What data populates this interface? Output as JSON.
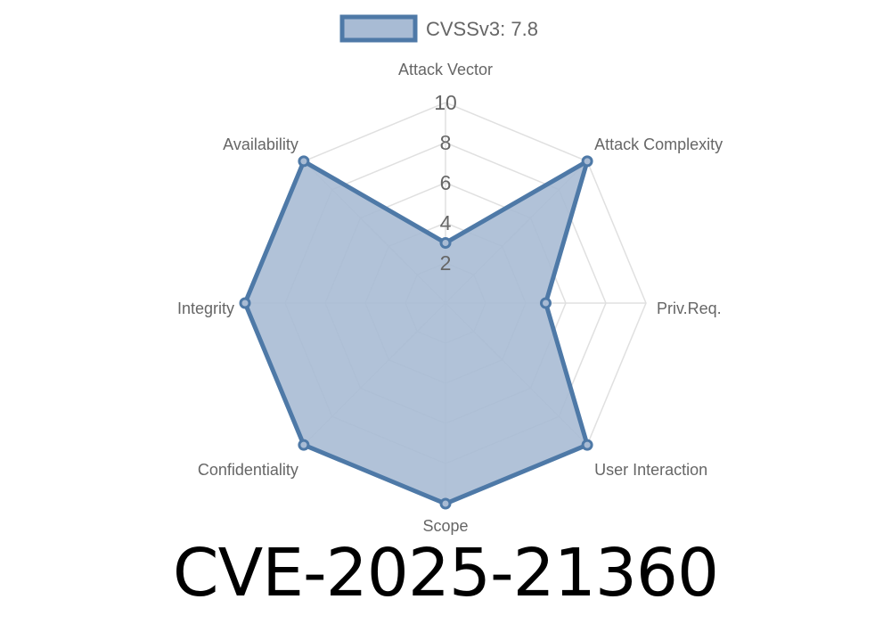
{
  "chart_data": {
    "type": "radar",
    "categories": [
      "Attack Vector",
      "Attack Complexity",
      "Priv.Req.",
      "User Interaction",
      "Scope",
      "Confidentiality",
      "Integrity",
      "Availability"
    ],
    "series": [
      {
        "name": "CVSSv3: 7.8",
        "values": [
          3,
          10,
          5,
          10,
          10,
          10,
          10,
          10
        ]
      }
    ],
    "rlim": [
      0,
      10
    ],
    "ticks": [
      "2",
      "4",
      "6",
      "8",
      "10"
    ],
    "grid": true,
    "legend": "top",
    "colors": {
      "line": "#4e79a7",
      "fill": "#a8bbd4",
      "grid": "#e0e0e0",
      "text": "#666666"
    }
  },
  "caption": "CVE-2025-21360"
}
